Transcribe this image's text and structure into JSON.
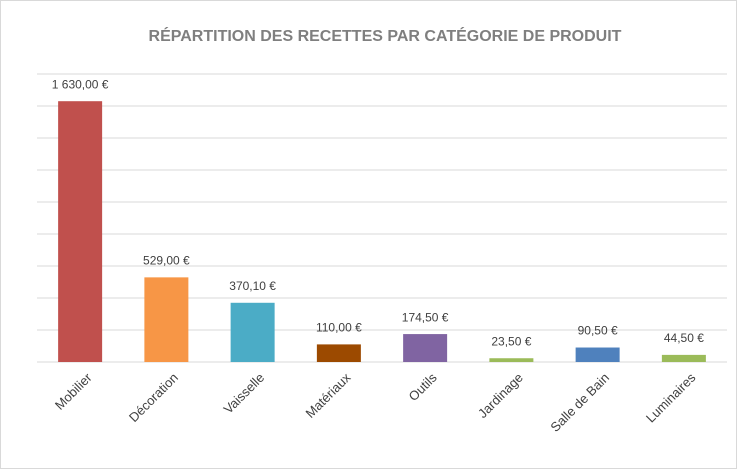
{
  "chart_data": {
    "type": "bar",
    "title": "RÉPARTITION DES RECETTES PAR CATÉGORIE DE PRODUIT",
    "categories": [
      "Mobilier",
      "Décoration",
      "Vaisselle",
      "Matériaux",
      "Outils",
      "Jardinage",
      "Salle de Bain",
      "Luminaires"
    ],
    "values": [
      1630,
      529,
      370.1,
      110,
      174.5,
      23.5,
      90.5,
      44.5
    ],
    "value_labels": [
      "1 630,00 €",
      "529,00 €",
      "370,10 €",
      "110,00 €",
      "174,50 €",
      "23,50 €",
      "90,50 €",
      "44,50 €"
    ],
    "colors": [
      "#c0504d",
      "#f79646",
      "#4bacc6",
      "#9c4a00",
      "#8064a2",
      "#9bbb59",
      "#4f81bd",
      "#9bbb59"
    ],
    "ylim": [
      0,
      1800
    ],
    "yticks": [
      0,
      200,
      400,
      600,
      800,
      1000,
      1200,
      1400,
      1600,
      1800
    ],
    "grid": true
  }
}
